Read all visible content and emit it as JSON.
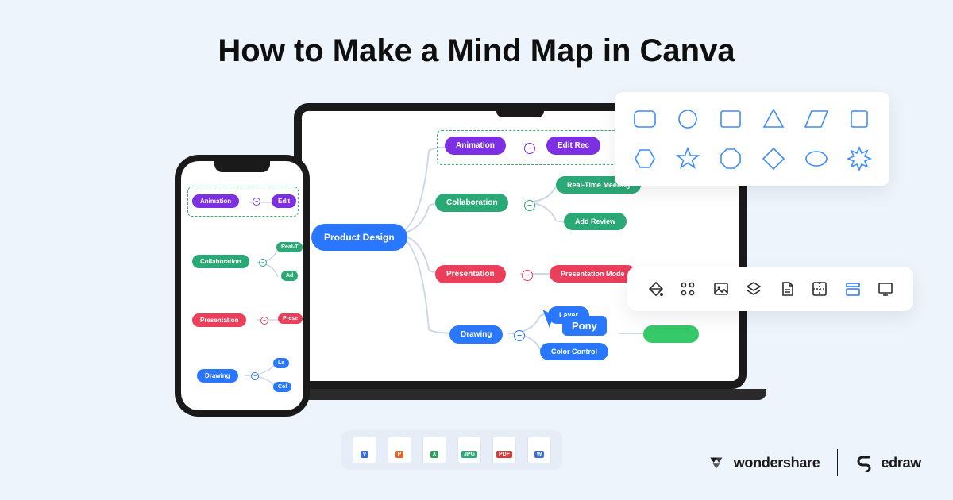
{
  "title": {
    "text": "How to Make a Mind Map in Canva",
    "fontsize": 40,
    "color": "#0f0f0f"
  },
  "background_color": "#eef4fb",
  "mindmap": {
    "root": {
      "label": "Product Design",
      "color": "#2a77ff"
    },
    "branches": [
      {
        "label": "Animation",
        "color": "#7d30e2",
        "children": [
          {
            "label": "Edit Rec",
            "color": "#7d30e2"
          }
        ],
        "dashed": true,
        "dash_color": "#35b36a"
      },
      {
        "label": "Collaboration",
        "color": "#2aa876",
        "children": [
          {
            "label": "Real-Time Meeting",
            "color": "#2aa876"
          },
          {
            "label": "Add Review",
            "color": "#2aa876"
          }
        ]
      },
      {
        "label": "Presentation",
        "color": "#ea3e5b",
        "children": [
          {
            "label": "Presentation Mode",
            "color": "#ea3e5b"
          }
        ]
      },
      {
        "label": "Drawing",
        "color": "#2a77ff",
        "children": [
          {
            "label": "Layer",
            "color": "#2a77ff"
          },
          {
            "label": "Color Control",
            "color": "#2a77ff"
          }
        ],
        "extra_green_pill": true
      }
    ],
    "connector_color": "#cfd8e6",
    "plus_bg": "#ffffff"
  },
  "cursor": {
    "color": "#2a77ff",
    "tooltip": "Pony"
  },
  "shapes_panel": {
    "stroke": "#3d8cff",
    "stroke_width": 1.6,
    "shapes": [
      "rounded-rect",
      "circle",
      "rect",
      "triangle",
      "parallelogram",
      "square",
      "hexagon",
      "star",
      "octagon-badge",
      "diamond",
      "ellipse",
      "burst"
    ]
  },
  "toolbar": {
    "icons": [
      "fill",
      "grid",
      "image",
      "layers",
      "document",
      "export",
      "layout",
      "presentation"
    ],
    "default_color": "#2d2d2d",
    "active_color": "#2a77ff",
    "active_index": 6
  },
  "formats": [
    {
      "label": "V",
      "bg": "#ffffff",
      "tag_bg": "#3a6fd8"
    },
    {
      "label": "P",
      "bg": "#ffffff",
      "tag_bg": "#e8622c"
    },
    {
      "label": "X",
      "bg": "#ffffff",
      "tag_bg": "#2a9d5a"
    },
    {
      "label": "JPG",
      "bg": "#ffffff",
      "tag_bg": "#2aa876"
    },
    {
      "label": "PDF",
      "bg": "#ffffff",
      "tag_bg": "#d83a3a"
    },
    {
      "label": "W",
      "bg": "#ffffff",
      "tag_bg": "#3a6fd8"
    }
  ],
  "brands": {
    "wondershare": "wondershare",
    "edraw": "edraw",
    "color": "#1a1a1a"
  }
}
